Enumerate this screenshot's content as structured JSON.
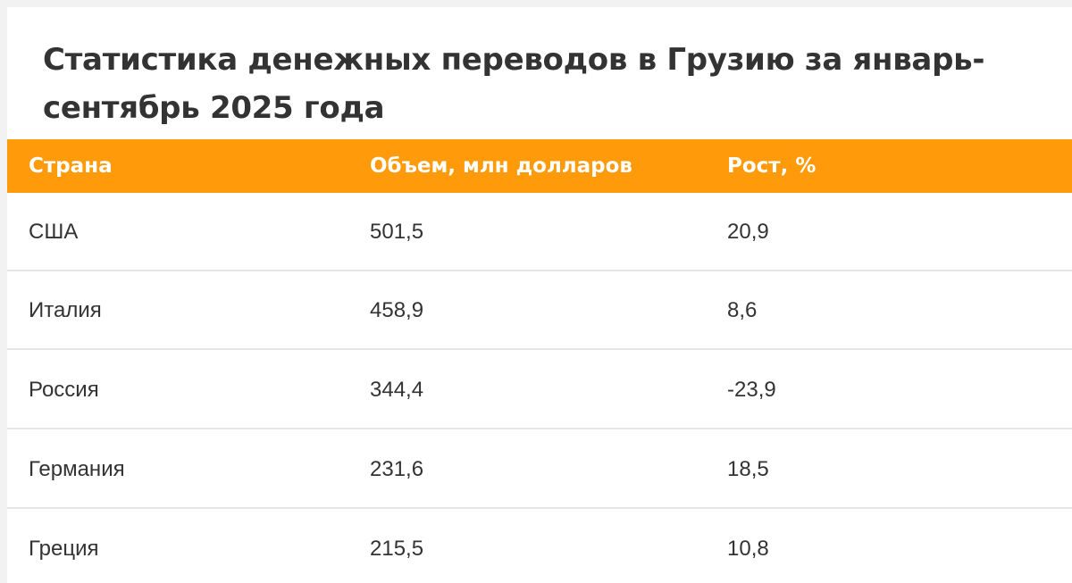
{
  "title": "Статистика денежных переводов в Грузию за январь-сентябрь 2025 года",
  "table": {
    "headers": [
      "Страна",
      "Объем, млн долларов",
      "Рост, %"
    ],
    "rows": [
      [
        "США",
        "501,5",
        "20,9"
      ],
      [
        "Италия",
        "458,9",
        "8,6"
      ],
      [
        "Россия",
        "344,4",
        "-23,9"
      ],
      [
        "Германия",
        "231,6",
        "18,5"
      ],
      [
        "Греция",
        "215,5",
        "10,8"
      ]
    ]
  },
  "colors": {
    "header_bg": "#ff9a0a",
    "header_text": "#ffffff",
    "text": "#333333",
    "row_divider": "#e6e6e6"
  }
}
